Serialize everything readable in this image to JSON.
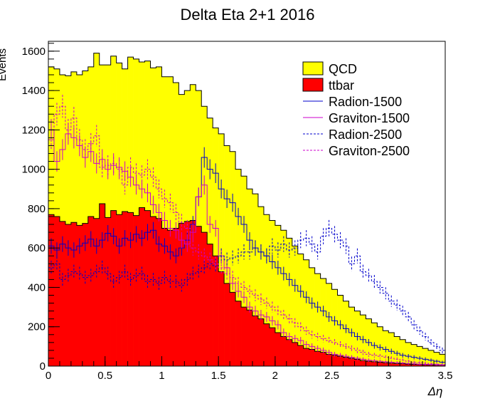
{
  "chart_data": {
    "type": "histogram",
    "title": "Delta Eta 2+1 2016",
    "xlabel": "Δη",
    "ylabel": "Events",
    "xlim": [
      0,
      3.5
    ],
    "ylim": [
      0,
      1650
    ],
    "bin_width": 0.05,
    "x_ticks": [
      0,
      0.5,
      1,
      1.5,
      2,
      2.5,
      3,
      3.5
    ],
    "x_tick_labels": [
      "0",
      "0.5",
      "1",
      "1.5",
      "2",
      "2.5",
      "3",
      "3.5"
    ],
    "y_ticks": [
      0,
      200,
      400,
      600,
      800,
      1000,
      1200,
      1400,
      1600
    ],
    "y_tick_labels": [
      "0",
      "200",
      "400",
      "600",
      "800",
      "1000",
      "1200",
      "1400",
      "1600"
    ],
    "stacked": true,
    "legend_position": "top-right",
    "legend": [
      {
        "label": "QCD",
        "style": "fill",
        "color": "#ffff00"
      },
      {
        "label": "ttbar",
        "style": "fill",
        "color": "#ff0000"
      },
      {
        "label": "Radion-1500",
        "style": "solid",
        "color": "#0000cc"
      },
      {
        "label": "Graviton-1500",
        "style": "solid",
        "color": "#cc00cc"
      },
      {
        "label": "Radion-2500",
        "style": "dashed",
        "color": "#0000cc"
      },
      {
        "label": "Graviton-2500",
        "style": "dashed",
        "color": "#cc00cc"
      }
    ],
    "series": [
      {
        "name": "ttbar",
        "kind": "stack",
        "color": "#ff0000",
        "values": [
          770,
          760,
          735,
          720,
          730,
          715,
          725,
          760,
          750,
          825,
          755,
          790,
          770,
          785,
          780,
          765,
          805,
          790,
          760,
          750,
          700,
          690,
          700,
          725,
          735,
          740,
          710,
          680,
          620,
          560,
          480,
          420,
          375,
          330,
          300,
          285,
          255,
          240,
          215,
          195,
          170,
          150,
          135,
          120,
          105,
          90,
          85,
          75,
          70,
          60,
          55,
          50,
          45,
          40,
          35,
          28,
          25,
          22,
          20,
          17,
          15,
          13,
          12,
          10,
          9,
          8,
          7,
          6,
          5,
          5
        ]
      },
      {
        "name": "QCD",
        "kind": "stack_total",
        "color": "#ffff00",
        "values": [
          1520,
          1510,
          1480,
          1475,
          1495,
          1480,
          1500,
          1520,
          1590,
          1530,
          1530,
          1575,
          1540,
          1510,
          1570,
          1560,
          1545,
          1550,
          1515,
          1520,
          1470,
          1470,
          1440,
          1380,
          1400,
          1430,
          1400,
          1320,
          1260,
          1210,
          1180,
          1120,
          1090,
          1000,
          965,
          900,
          875,
          810,
          770,
          740,
          715,
          690,
          650,
          610,
          570,
          540,
          500,
          470,
          445,
          420,
          390,
          360,
          330,
          300,
          280,
          260,
          240,
          220,
          200,
          180,
          170,
          150,
          135,
          120,
          110,
          100,
          90,
          80,
          70,
          60
        ]
      },
      {
        "name": "Radion-1500",
        "kind": "line",
        "color": "#0000cc",
        "dash": false,
        "values": [
          610,
          590,
          620,
          600,
          590,
          610,
          625,
          645,
          610,
          640,
          675,
          660,
          610,
          650,
          640,
          670,
          650,
          680,
          690,
          620,
          610,
          580,
          560,
          600,
          640,
          720,
          860,
          1060,
          1000,
          980,
          900,
          850,
          830,
          760,
          720,
          640,
          600,
          580,
          560,
          530,
          500,
          470,
          440,
          410,
          380,
          350,
          320,
          300,
          280,
          250,
          230,
          210,
          190,
          170,
          150,
          135,
          120,
          105,
          95,
          85,
          75,
          65,
          55,
          50,
          45,
          40,
          35,
          30,
          25,
          20
        ]
      },
      {
        "name": "Graviton-1500",
        "kind": "line",
        "color": "#cc00cc",
        "dash": false,
        "values": [
          1200,
          1040,
          1100,
          1180,
          1160,
          1120,
          1060,
          1090,
          1030,
          1050,
          1000,
          1020,
          1010,
          990,
          960,
          920,
          900,
          880,
          820,
          780,
          740,
          700,
          690,
          640,
          620,
          680,
          860,
          920,
          720,
          700,
          560,
          500,
          420,
          380,
          350,
          300,
          280,
          260,
          250,
          230,
          210,
          170,
          150,
          140,
          130,
          110,
          100,
          90,
          80,
          70,
          60,
          55,
          50,
          45,
          40,
          35,
          30,
          28,
          25,
          22,
          20,
          18,
          16,
          14,
          12,
          10,
          9,
          8,
          7,
          6
        ]
      },
      {
        "name": "Radion-2500",
        "kind": "line",
        "color": "#0000cc",
        "dash": true,
        "values": [
          500,
          520,
          440,
          460,
          480,
          470,
          450,
          460,
          480,
          500,
          470,
          430,
          450,
          480,
          440,
          460,
          470,
          430,
          440,
          420,
          450,
          430,
          430,
          410,
          440,
          470,
          480,
          500,
          520,
          510,
          560,
          540,
          550,
          560,
          580,
          580,
          600,
          580,
          560,
          610,
          590,
          620,
          590,
          600,
          640,
          650,
          620,
          580,
          660,
          700,
          670,
          640,
          610,
          520,
          560,
          480,
          460,
          430,
          400,
          370,
          330,
          310,
          280,
          250,
          210,
          180,
          150,
          120,
          100,
          80
        ]
      },
      {
        "name": "Graviton-2500",
        "kind": "line",
        "color": "#cc00cc",
        "dash": true,
        "values": [
          1150,
          1280,
          1320,
          1200,
          1260,
          1150,
          1100,
          1130,
          1170,
          1010,
          1020,
          1030,
          1000,
          920,
          1010,
          980,
          970,
          1000,
          960,
          900,
          850,
          830,
          780,
          730,
          700,
          600,
          580,
          560,
          540,
          520,
          500,
          470,
          450,
          420,
          400,
          380,
          360,
          340,
          320,
          300,
          280,
          260,
          240,
          220,
          200,
          180,
          160,
          150,
          140,
          130,
          120,
          110,
          100,
          90,
          80,
          70,
          60,
          55,
          50,
          45,
          40,
          35,
          30,
          25,
          20,
          18,
          15,
          12,
          10,
          8
        ]
      }
    ]
  }
}
